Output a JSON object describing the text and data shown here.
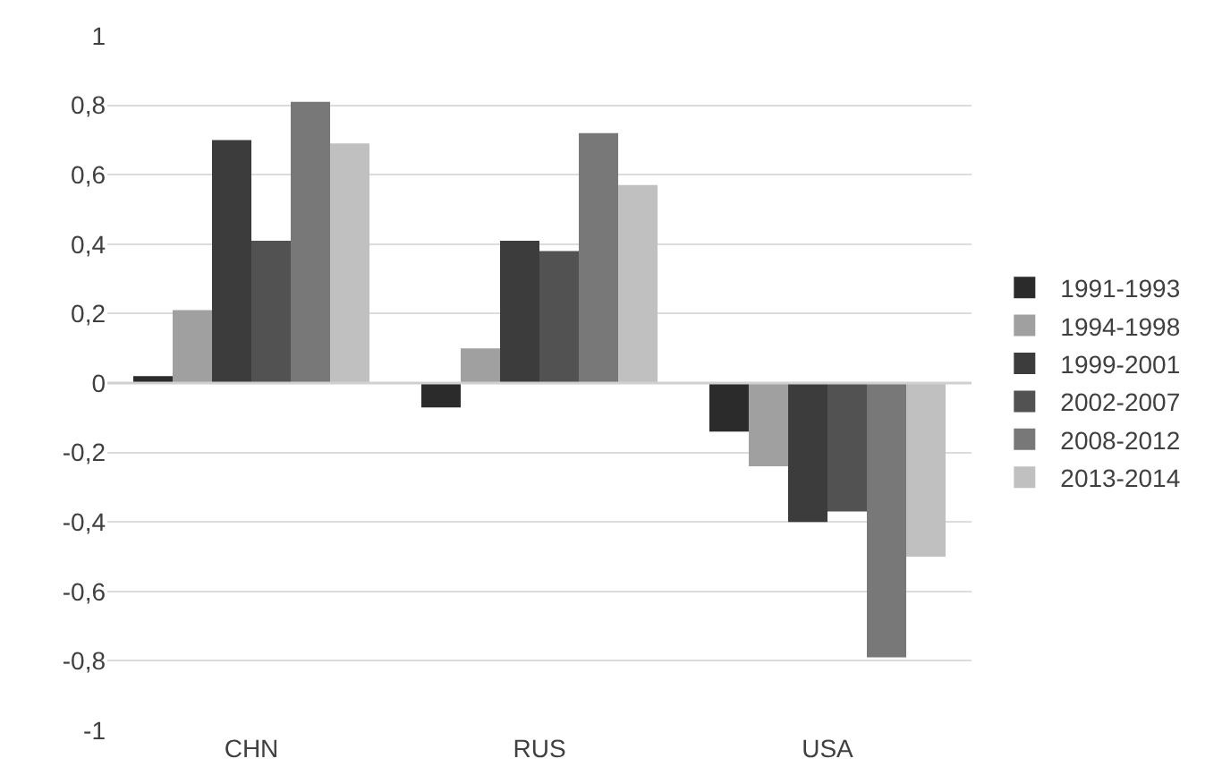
{
  "chart_data": {
    "type": "bar",
    "categories": [
      "CHN",
      "RUS",
      "USA"
    ],
    "series": [
      {
        "name": "1991-1993",
        "color": "#2b2b2b",
        "values": [
          0.02,
          -0.07,
          -0.14
        ]
      },
      {
        "name": "1994-1998",
        "color": "#a0a0a0",
        "values": [
          0.21,
          0.1,
          -0.24
        ]
      },
      {
        "name": "1999-2001",
        "color": "#3c3c3c",
        "values": [
          0.7,
          0.41,
          -0.4
        ]
      },
      {
        "name": "2002-2007",
        "color": "#525252",
        "values": [
          0.41,
          0.38,
          -0.37
        ]
      },
      {
        "name": "2008-2012",
        "color": "#787878",
        "values": [
          0.81,
          0.72,
          -0.79
        ]
      },
      {
        "name": "2013-2014",
        "color": "#c0c0c0",
        "values": [
          0.69,
          0.57,
          -0.5
        ]
      }
    ],
    "ylim": [
      -1,
      1
    ],
    "yticks": [
      {
        "value": -1,
        "label": "-1"
      },
      {
        "value": -0.8,
        "label": "-0,8"
      },
      {
        "value": -0.6,
        "label": "-0,6"
      },
      {
        "value": -0.4,
        "label": "-0,4"
      },
      {
        "value": -0.2,
        "label": "-0,2"
      },
      {
        "value": 0,
        "label": "0"
      },
      {
        "value": 0.2,
        "label": "0,2"
      },
      {
        "value": 0.4,
        "label": "0,4"
      },
      {
        "value": 0.6,
        "label": "0,6"
      },
      {
        "value": 0.8,
        "label": "0,8"
      },
      {
        "value": 1,
        "label": "1"
      }
    ],
    "grid": "y",
    "legend": "right"
  }
}
